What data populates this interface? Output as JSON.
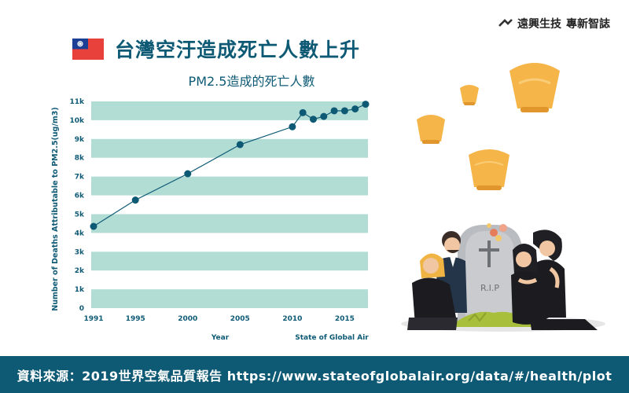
{
  "brand": {
    "name": "遠興生技",
    "subtitle": "專新智誌"
  },
  "header": {
    "title": "台灣空汙造成死亡人數上升"
  },
  "chart_data": {
    "type": "line",
    "title": "PM2.5造成的死亡人數",
    "xlabel": "Year",
    "ylabel": "Number of Deaths Attributable to PM2.5(ug/m3)",
    "source_note": "State of Global Air",
    "xlim": [
      1991,
      2017
    ],
    "ylim": [
      0,
      11000
    ],
    "x_ticks": [
      1991,
      1995,
      2000,
      2005,
      2010,
      2015
    ],
    "y_ticks": [
      {
        "v": 0,
        "label": "0"
      },
      {
        "v": 1000,
        "label": "1k"
      },
      {
        "v": 2000,
        "label": "2k"
      },
      {
        "v": 3000,
        "label": "3k"
      },
      {
        "v": 4000,
        "label": "4k"
      },
      {
        "v": 5000,
        "label": "5k"
      },
      {
        "v": 6000,
        "label": "6k"
      },
      {
        "v": 7000,
        "label": "7k"
      },
      {
        "v": 8000,
        "label": "8k"
      },
      {
        "v": 9000,
        "label": "9k"
      },
      {
        "v": 10000,
        "label": "10k"
      },
      {
        "v": 11000,
        "label": "11k"
      }
    ],
    "series": [
      {
        "x": [
          1991,
          1995,
          2000,
          2005,
          2010,
          2011,
          2012,
          2013,
          2014,
          2015,
          2016,
          2017
        ],
        "y": [
          4350,
          5750,
          7150,
          8700,
          9650,
          10400,
          10050,
          10200,
          10500,
          10500,
          10600,
          10850
        ]
      }
    ],
    "colors": {
      "line": "#0e5a75",
      "band": "#b2ddd5"
    }
  },
  "illustration": {
    "tombstone_text": "R.I.P"
  },
  "footer": {
    "text": "資料來源：2019世界空氣品質報告 https://www.stateofglobalair.org/data/#/health/plot"
  }
}
